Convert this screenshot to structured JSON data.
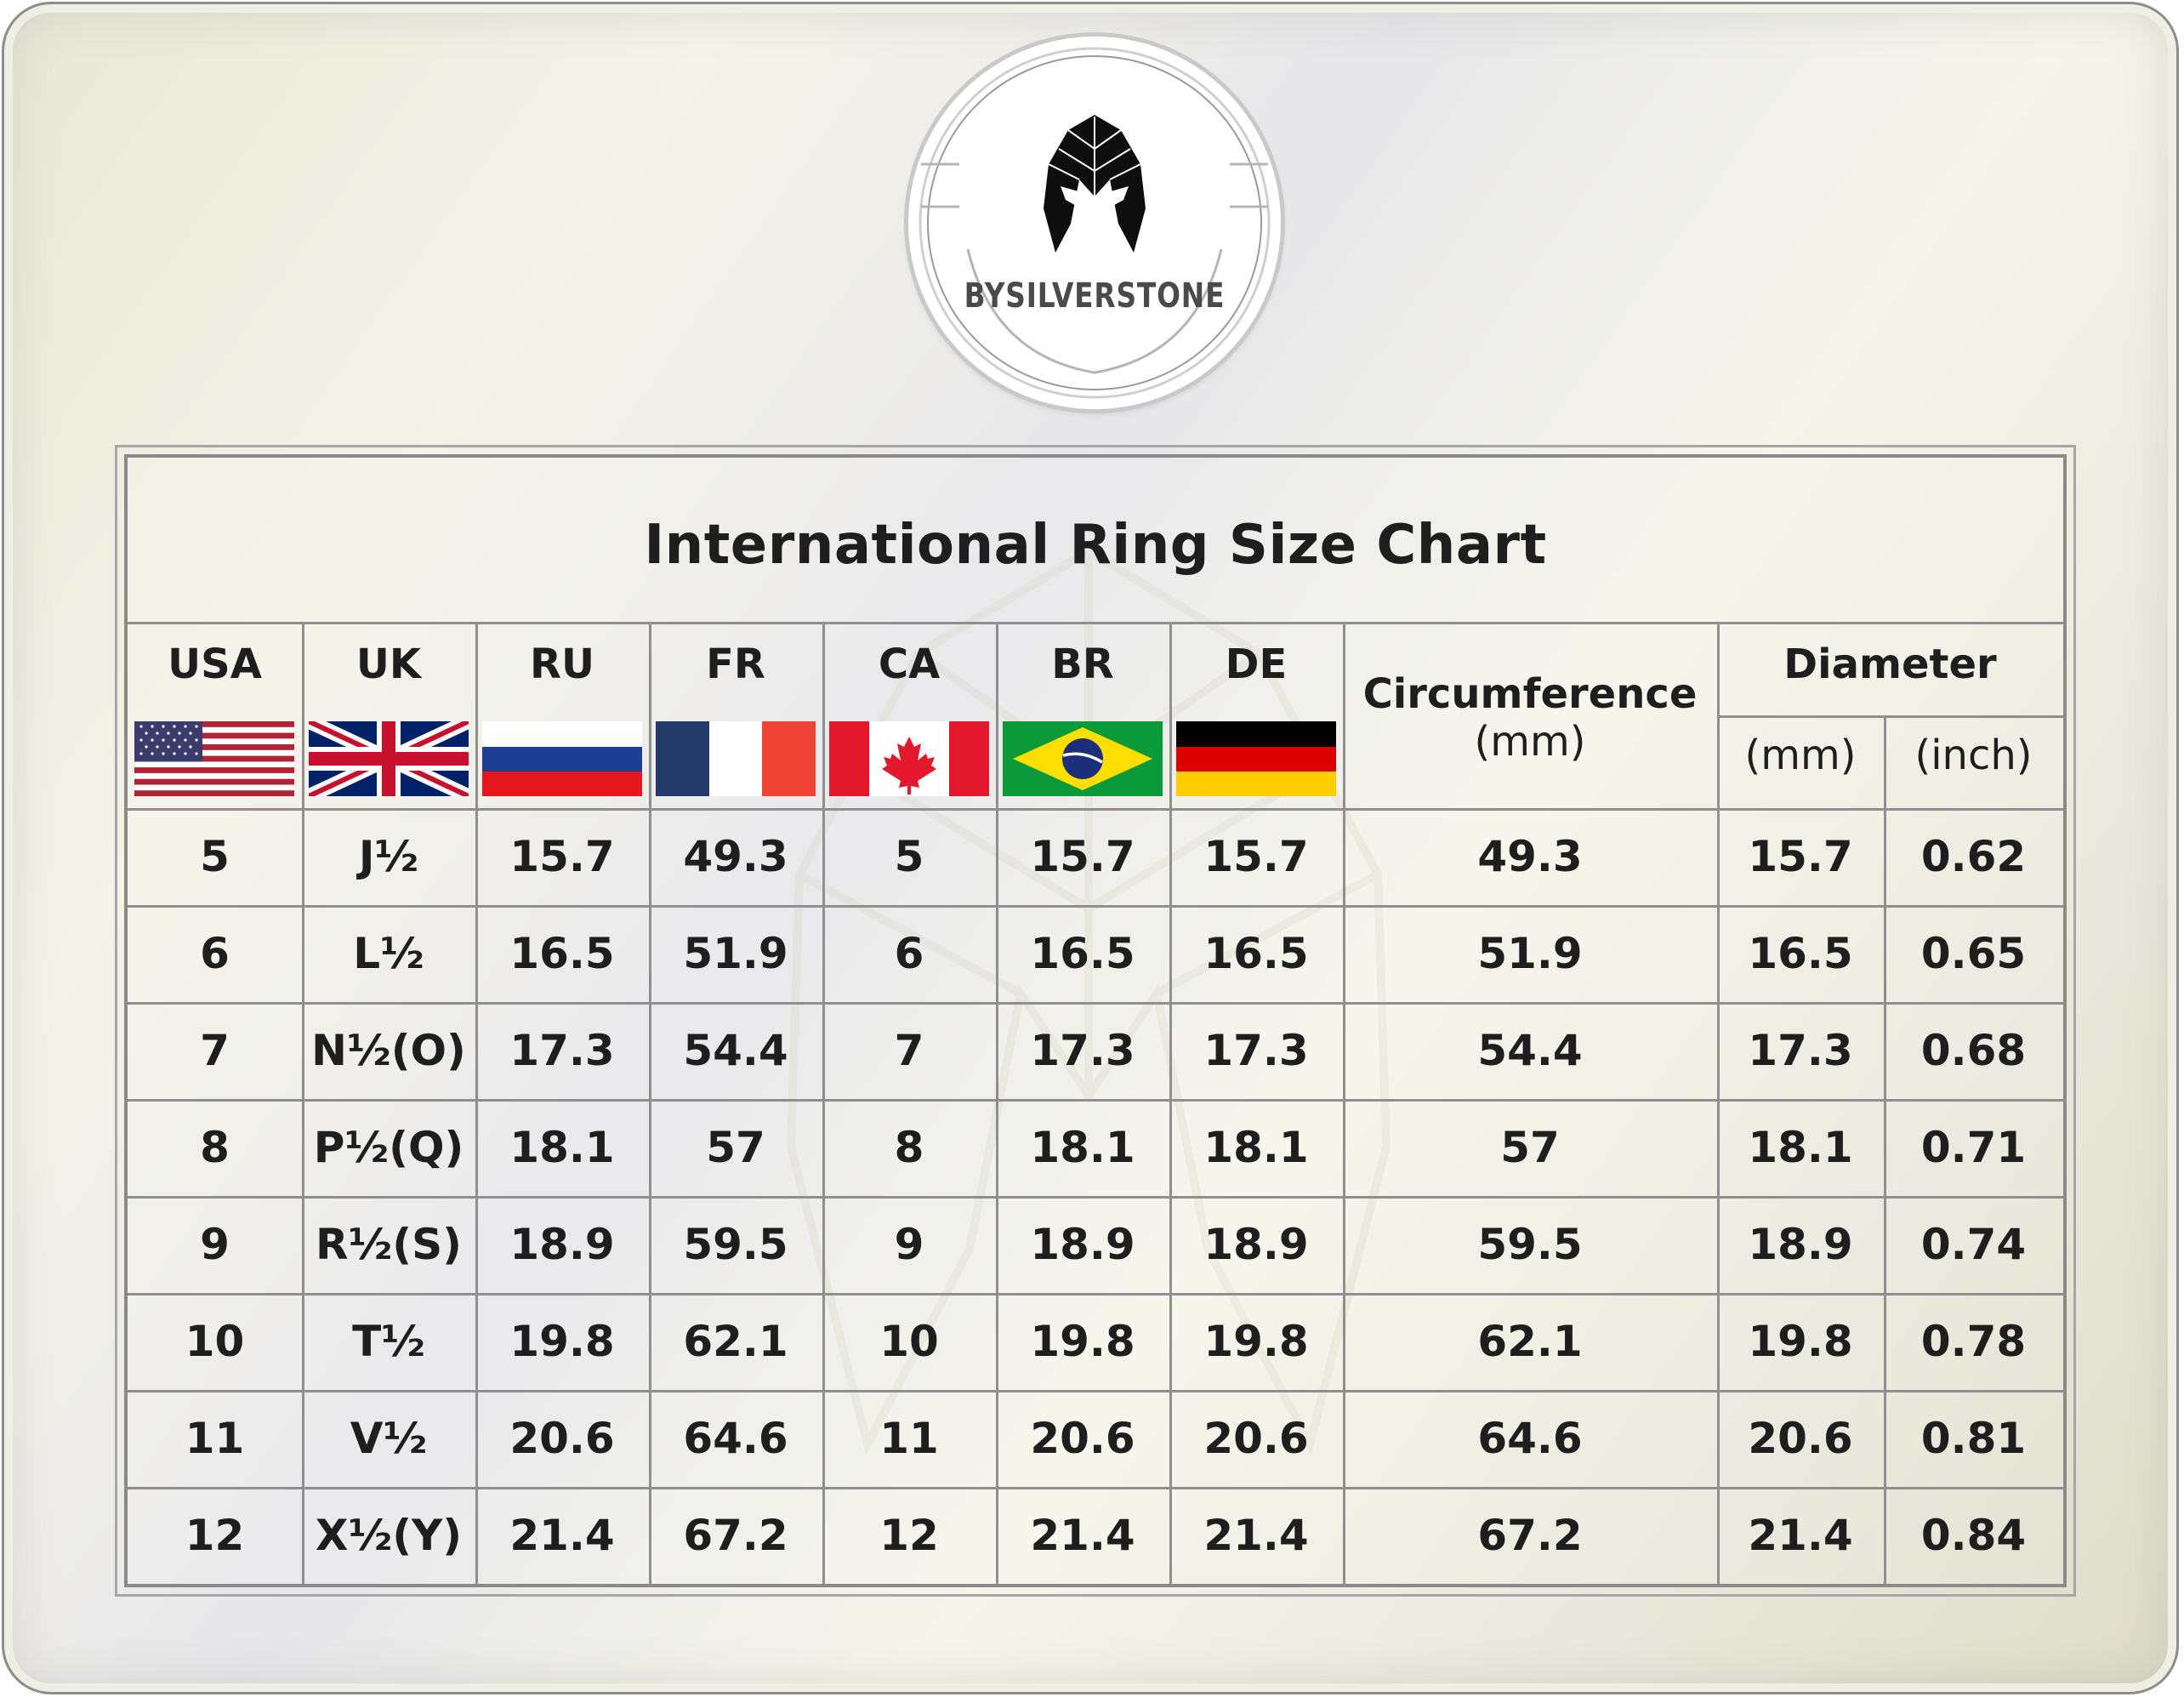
{
  "brand": {
    "name": "BYSILVERSTONE",
    "logo_icon": "spartan-helmet-icon"
  },
  "chart_data": {
    "type": "table",
    "title": "International Ring Size Chart",
    "columns": [
      {
        "key": "usa",
        "label": "USA",
        "flag": "usa-flag-icon"
      },
      {
        "key": "uk",
        "label": "UK",
        "flag": "uk-flag-icon"
      },
      {
        "key": "ru",
        "label": "RU",
        "flag": "russia-flag-icon"
      },
      {
        "key": "fr",
        "label": "FR",
        "flag": "france-flag-icon"
      },
      {
        "key": "ca",
        "label": "CA",
        "flag": "canada-flag-icon"
      },
      {
        "key": "br",
        "label": "BR",
        "flag": "brazil-flag-icon"
      },
      {
        "key": "de",
        "label": "DE",
        "flag": "germany-flag-icon"
      },
      {
        "key": "circ",
        "label": "Circumference",
        "unit": "(mm)"
      },
      {
        "key": "dia_mm",
        "group": "Diameter",
        "label": "(mm)"
      },
      {
        "key": "dia_in",
        "group": "Diameter",
        "label": "(inch)"
      }
    ],
    "rows": [
      [
        "5",
        "J½",
        "15.7",
        "49.3",
        "5",
        "15.7",
        "15.7",
        "49.3",
        "15.7",
        "0.62"
      ],
      [
        "6",
        "L½",
        "16.5",
        "51.9",
        "6",
        "16.5",
        "16.5",
        "51.9",
        "16.5",
        "0.65"
      ],
      [
        "7",
        "N½(O)",
        "17.3",
        "54.4",
        "7",
        "17.3",
        "17.3",
        "54.4",
        "17.3",
        "0.68"
      ],
      [
        "8",
        "P½(Q)",
        "18.1",
        "57",
        "8",
        "18.1",
        "18.1",
        "57",
        "18.1",
        "0.71"
      ],
      [
        "9",
        "R½(S)",
        "18.9",
        "59.5",
        "9",
        "18.9",
        "18.9",
        "59.5",
        "18.9",
        "0.74"
      ],
      [
        "10",
        "T½",
        "19.8",
        "62.1",
        "10",
        "19.8",
        "19.8",
        "62.1",
        "19.8",
        "0.78"
      ],
      [
        "11",
        "V½",
        "20.6",
        "64.6",
        "11",
        "20.6",
        "20.6",
        "64.6",
        "20.6",
        "0.81"
      ],
      [
        "12",
        "X½(Y)",
        "21.4",
        "67.2",
        "12",
        "21.4",
        "21.4",
        "67.2",
        "21.4",
        "0.84"
      ]
    ]
  },
  "colors": {
    "usa_red": "#b22234",
    "usa_blue": "#3c3b6e",
    "uk_blue": "#012169",
    "uk_red": "#c8102e",
    "ru_blue": "#1c3f95",
    "ru_red": "#e4181c",
    "fr_blue": "#233a6b",
    "fr_red": "#ef4135",
    "ca_red": "#e3182d",
    "br_green": "#0a9a39",
    "br_yellow": "#fedd00",
    "br_blue": "#1d2f7a",
    "de_black": "#000000",
    "de_red": "#dd0000",
    "de_gold": "#ffce00"
  }
}
